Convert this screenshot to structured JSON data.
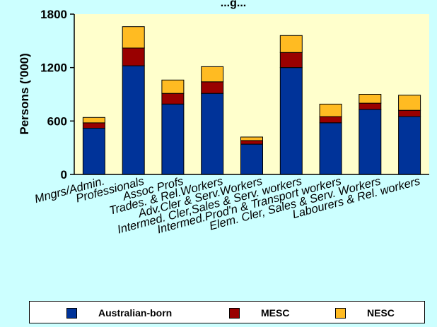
{
  "chart_data": {
    "type": "bar",
    "stacked": true,
    "title": "...g...",
    "ylabel": "Persons ('000)",
    "xlabel": "",
    "ylim": [
      0,
      1800
    ],
    "yticks": [
      0,
      600,
      1200,
      1800
    ],
    "grid": false,
    "legend_position": "bottom",
    "categories": [
      "Mngrs/Admin.",
      "Professionals",
      "Assoc Profs",
      "Trades. & Rel.Workers",
      "Adv.Cler & Serv.Workers",
      "Intermed. Cler,Sales & Serv. workers",
      "Intermed.Prod'n & Transport workers",
      "Elem. Cler, Sales & Serv. Workers",
      "Labourers & Rel. workers"
    ],
    "series": [
      {
        "name": "Australian-born",
        "color": "#003399",
        "values": [
          520,
          1220,
          790,
          910,
          340,
          1200,
          580,
          730,
          650
        ]
      },
      {
        "name": "MESC",
        "color": "#990000",
        "values": [
          60,
          200,
          120,
          130,
          40,
          170,
          70,
          70,
          70
        ]
      },
      {
        "name": "NESC",
        "color": "#ffbb22",
        "values": [
          60,
          240,
          150,
          170,
          40,
          190,
          140,
          100,
          170
        ]
      }
    ]
  },
  "colors": {
    "background": "#ccffff",
    "plot_area": "#ffffcc"
  }
}
